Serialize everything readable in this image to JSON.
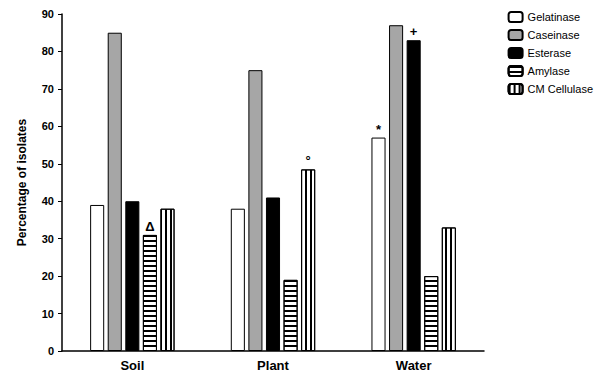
{
  "chart_data": {
    "type": "bar",
    "y_label": "Percentage of isolates",
    "categories": [
      "Soil",
      "Plant",
      "Water"
    ],
    "series": [
      {
        "name": "Gelatinase",
        "color": "#ffffff",
        "values": [
          39,
          38,
          57
        ]
      },
      {
        "name": "Caseinase",
        "color": "#a6a6a6",
        "values": [
          85,
          75,
          87
        ]
      },
      {
        "name": "Esterase",
        "color": "#000000",
        "values": [
          40,
          41,
          83
        ]
      },
      {
        "name": "Amylase",
        "color": "#ffffff",
        "values": [
          31,
          19,
          20
        ]
      },
      {
        "name": "CM Cellulase",
        "color": "#ffffff",
        "values": [
          38,
          48.5,
          33
        ]
      }
    ],
    "annotations": [
      {
        "text": "Δ",
        "category": "Soil",
        "series": "Amylase"
      },
      {
        "text": "°",
        "category": "Plant",
        "series": "CM Cellulase"
      },
      {
        "text": "*",
        "category": "Water",
        "series": "Gelatinase"
      },
      {
        "text": "+",
        "category": "Water",
        "series": "Esterase"
      }
    ],
    "ylim": [
      0,
      90
    ],
    "yticks": [
      0,
      10,
      20,
      30,
      40,
      50,
      60,
      70,
      80,
      90
    ],
    "grid": false,
    "legend": "upper right"
  }
}
